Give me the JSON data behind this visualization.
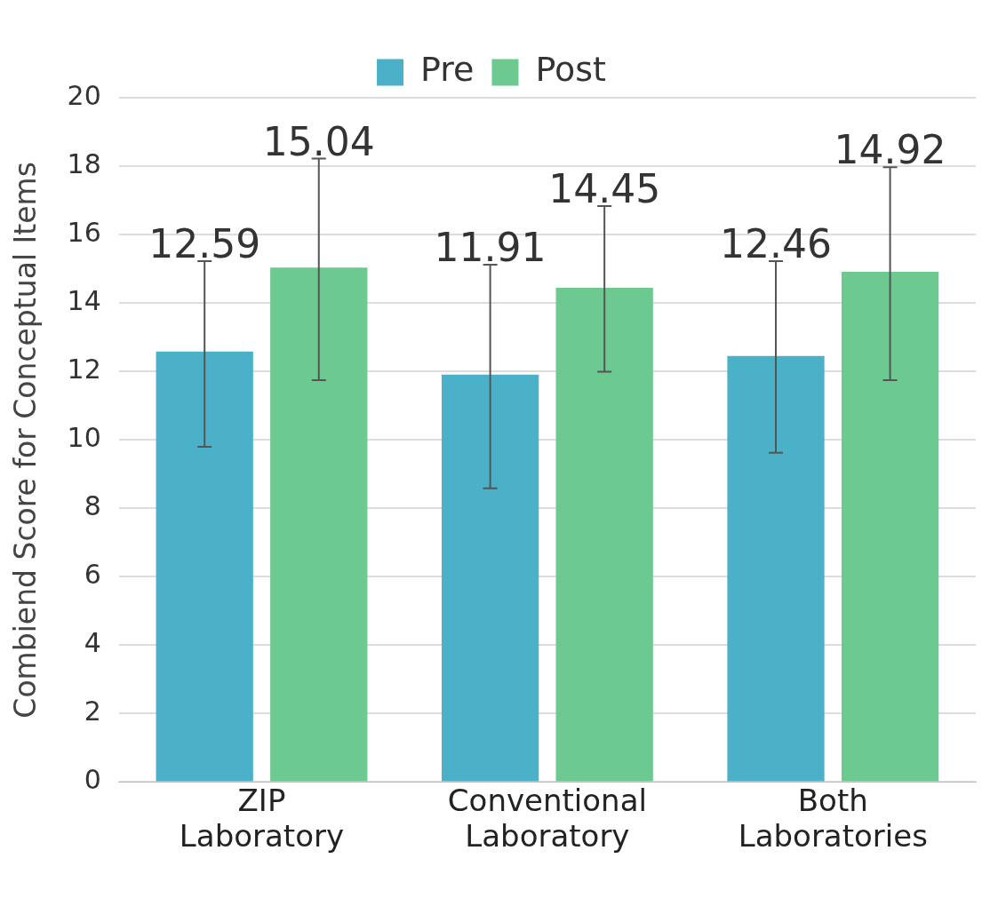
{
  "chart_data": {
    "type": "bar",
    "ylabel": "Combiend Score for Conceptual Items",
    "categories": [
      "ZIP\nLaboratory",
      "Conventional\nLaboratory",
      "Both\nLaboratories"
    ],
    "series": [
      {
        "name": "Pre",
        "color": "#4bb1c9",
        "values": [
          12.59,
          11.91,
          12.46
        ],
        "errors": [
          [
            9.8,
            15.23
          ],
          [
            8.59,
            15.13
          ],
          [
            9.63,
            15.23
          ]
        ]
      },
      {
        "name": "Post",
        "color": "#6cc990",
        "values": [
          15.04,
          14.45,
          14.92
        ],
        "errors": [
          [
            11.75,
            18.23
          ],
          [
            12.0,
            16.84
          ],
          [
            11.75,
            17.98
          ]
        ]
      }
    ],
    "ylim": [
      0,
      20
    ],
    "yticks": [
      0,
      2,
      4,
      6,
      8,
      10,
      12,
      14,
      16,
      18,
      20
    ],
    "grid": "y",
    "legend": "top",
    "data_labels": true
  }
}
